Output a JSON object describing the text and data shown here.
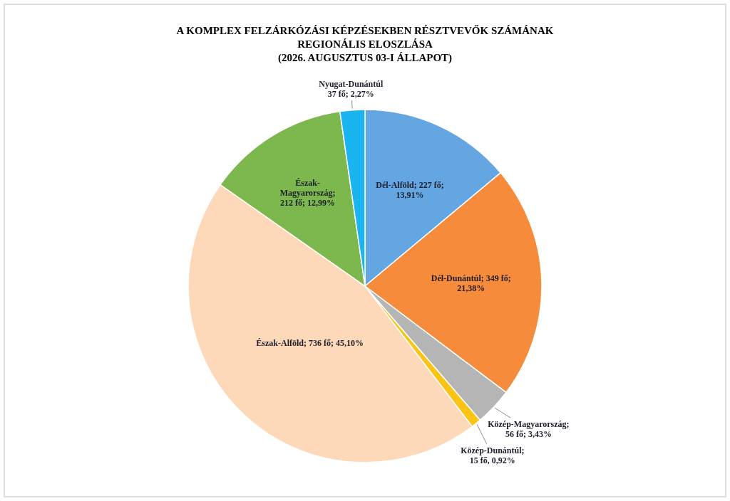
{
  "chart_data": {
    "type": "pie",
    "title": "A KOMPLEX FELZÁRKÓZÁSI KÉPZÉSEKBEN RÉSZTVEVŐK SZÁMÁNAK REGIONÁLIS ELOSZLÁSA",
    "subtitle": "(2026. AUGUSZTUS 03-I ÁLLAPOT)",
    "categories": [
      "Dél-Alföld",
      "Dél-Dunántúl",
      "Közép-Magyarország",
      "Közép-Dunántúl",
      "Észak-Alföld",
      "Észak-Magyarország",
      "Nyugat-Dunántúl"
    ],
    "values": [
      227,
      349,
      56,
      15,
      736,
      212,
      37
    ],
    "colors": [
      "#63a6e2",
      "#f68b3b",
      "#b5b5b5",
      "#f9c413",
      "#fdd9b9",
      "#7cb84d",
      "#1ab4f0"
    ],
    "value_labels": [
      "; 227 fő; 13,91%",
      "; 349 fő; 21,38%",
      "; 56 fő; 3,43%",
      "; 15 fő, 0,92%",
      "; 736 fő; 45,10%",
      "; 212 fő; 12,99%",
      "37 fő; 2,27%"
    ]
  }
}
